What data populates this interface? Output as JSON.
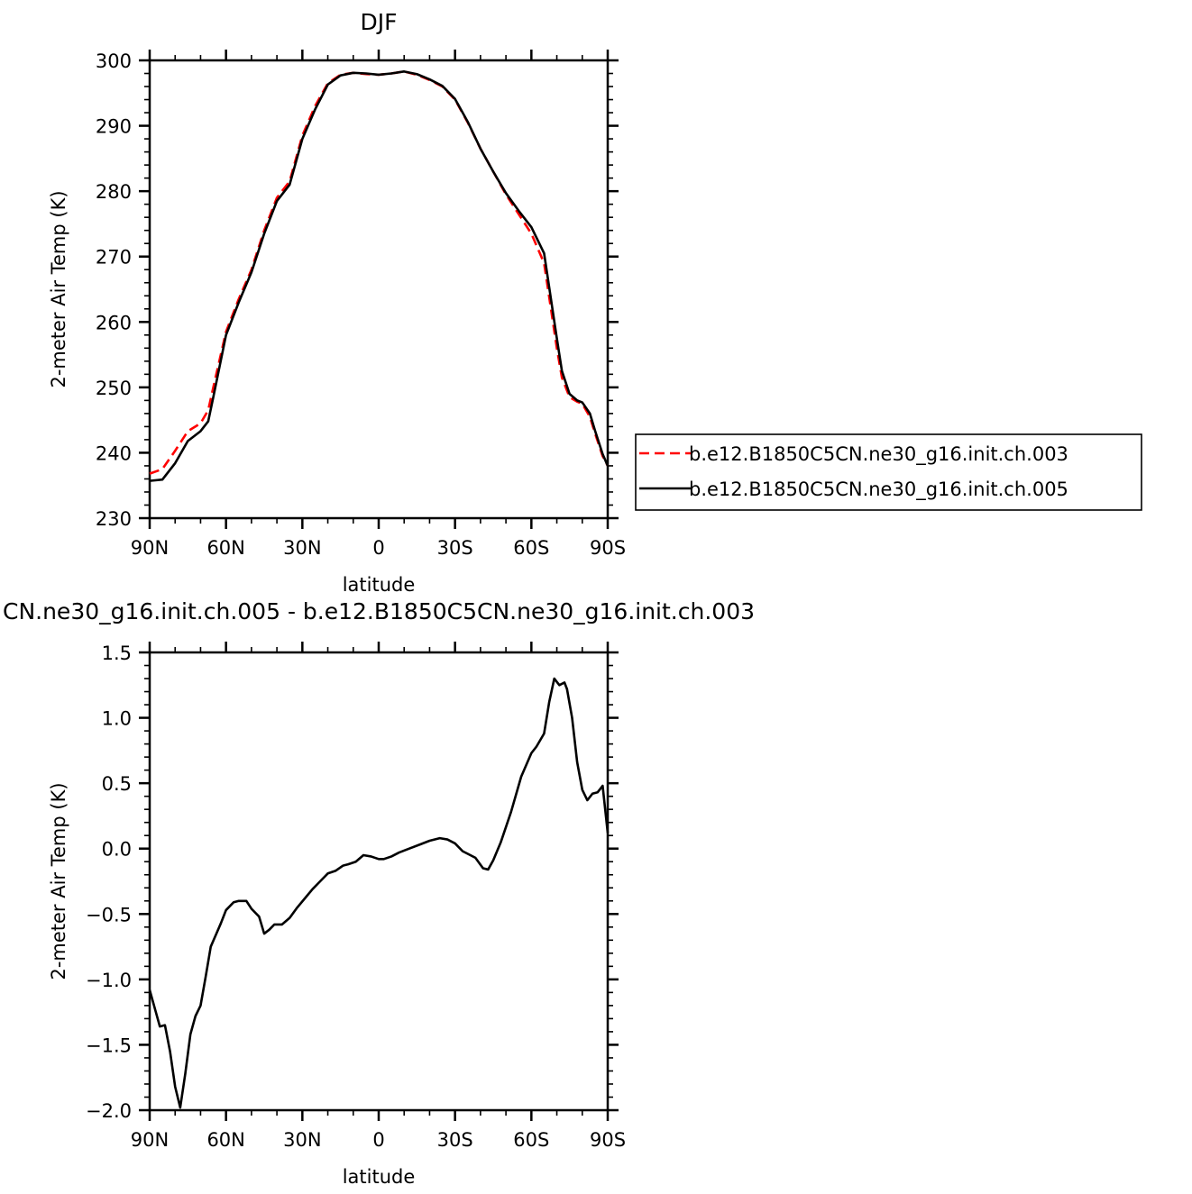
{
  "chart_data": [
    {
      "type": "line",
      "title": "DJF",
      "xlabel": "latitude",
      "ylabel": "2-meter Air Temp (K)",
      "xlim": [
        90,
        -90
      ],
      "ylim": [
        230,
        300
      ],
      "x_tick_values": [
        90,
        60,
        30,
        0,
        -30,
        -60,
        -90
      ],
      "x_tick_labels": [
        "90N",
        "60N",
        "30N",
        "0",
        "30S",
        "60S",
        "90S"
      ],
      "y_tick_values": [
        230,
        240,
        250,
        260,
        270,
        280,
        290,
        300
      ],
      "y_tick_labels": [
        "230",
        "240",
        "250",
        "260",
        "270",
        "280",
        "290",
        "300"
      ],
      "legend_position": "right",
      "grid": false,
      "series": [
        {
          "name": "b.e12.B1850C5CN.ne30_g16.init.ch.003",
          "color": "#ff0000",
          "dash": "dashed",
          "x": [
            90,
            85,
            80,
            75,
            70,
            67,
            65,
            60,
            55,
            50,
            45,
            40,
            35,
            30,
            25,
            20,
            15,
            10,
            5,
            0,
            -5,
            -10,
            -15,
            -20,
            -25,
            -30,
            -35,
            -40,
            -45,
            -50,
            -55,
            -60,
            -65,
            -70,
            -72,
            -75,
            -78,
            -80,
            -83,
            -85,
            -88,
            -90
          ],
          "y": [
            236.8,
            237.5,
            240.3,
            243.3,
            244.5,
            246.5,
            250,
            258.5,
            263.5,
            268,
            274,
            279,
            281.5,
            288.5,
            293,
            296.5,
            297.8,
            298.1,
            297.9,
            297.8,
            298,
            298.3,
            297.8,
            297,
            296,
            294,
            290.5,
            286.5,
            283,
            279.5,
            276.5,
            273.5,
            269,
            256,
            251.5,
            248.5,
            247.8,
            247.5,
            245.5,
            243,
            239.5,
            238
          ]
        },
        {
          "name": "b.e12.B1850C5CN.ne30_g16.init.ch.005",
          "color": "#000000",
          "dash": "solid",
          "x": [
            90,
            85,
            80,
            75,
            70,
            67,
            65,
            60,
            55,
            50,
            45,
            40,
            35,
            30,
            25,
            20,
            15,
            10,
            5,
            0,
            -5,
            -10,
            -15,
            -20,
            -25,
            -30,
            -35,
            -40,
            -45,
            -50,
            -55,
            -60,
            -65,
            -70,
            -72,
            -75,
            -78,
            -80,
            -83,
            -85,
            -88,
            -90
          ],
          "y": [
            235.7,
            235.9,
            238.4,
            241.8,
            243.3,
            244.8,
            248.5,
            258,
            263,
            267.6,
            273.5,
            278.5,
            281,
            288,
            292.5,
            296.3,
            297.7,
            298.1,
            298,
            297.8,
            298,
            298.3,
            297.9,
            297.1,
            296.1,
            294.1,
            290.6,
            286.5,
            283,
            279.7,
            277,
            274.5,
            270.5,
            257.5,
            252.5,
            249,
            248,
            247.7,
            246,
            243.4,
            239.8,
            238
          ]
        }
      ]
    },
    {
      "type": "line",
      "title": "CN.ne30_g16.init.ch.005 - b.e12.B1850C5CN.ne30_g16.init.ch.003",
      "xlabel": "latitude",
      "ylabel": "2-meter Air Temp (K)",
      "xlim": [
        90,
        -90
      ],
      "ylim": [
        -2.0,
        1.5
      ],
      "x_tick_values": [
        90,
        60,
        30,
        0,
        -30,
        -60,
        -90
      ],
      "x_tick_labels": [
        "90N",
        "60N",
        "30N",
        "0",
        "30S",
        "60S",
        "90S"
      ],
      "y_tick_values": [
        -2.0,
        -1.5,
        -1.0,
        -0.5,
        0.0,
        0.5,
        1.0,
        1.5
      ],
      "y_tick_labels": [
        "−2.0",
        "−1.5",
        "−1.0",
        "−0.5",
        "0.0",
        "0.5",
        "1.0",
        "1.5"
      ],
      "grid": false,
      "series": [
        {
          "color": "#000000",
          "dash": "solid",
          "x": [
            90,
            88,
            86,
            84,
            82,
            80,
            78,
            76,
            74,
            72,
            70,
            68,
            66,
            64,
            62,
            60,
            57,
            55,
            52,
            50,
            47,
            45,
            43,
            41,
            38,
            35,
            32,
            29,
            26,
            23,
            20,
            17,
            14,
            12,
            9,
            6,
            3,
            0,
            -2,
            -5,
            -8,
            -12,
            -16,
            -20,
            -24,
            -27,
            -30,
            -33,
            -35,
            -38,
            -41,
            -43,
            -45,
            -48,
            -52,
            -56,
            -60,
            -62,
            -65,
            -67,
            -69,
            -71,
            -73,
            -74,
            -76,
            -78,
            -80,
            -82,
            -84,
            -86,
            -88,
            -90
          ],
          "y": [
            -1.08,
            -1.22,
            -1.36,
            -1.35,
            -1.55,
            -1.82,
            -1.98,
            -1.72,
            -1.42,
            -1.28,
            -1.2,
            -0.98,
            -0.75,
            -0.66,
            -0.57,
            -0.47,
            -0.41,
            -0.4,
            -0.4,
            -0.46,
            -0.52,
            -0.65,
            -0.62,
            -0.58,
            -0.58,
            -0.53,
            -0.45,
            -0.38,
            -0.31,
            -0.25,
            -0.19,
            -0.17,
            -0.13,
            -0.12,
            -0.1,
            -0.05,
            -0.06,
            -0.08,
            -0.08,
            -0.06,
            -0.03,
            0.0,
            0.03,
            0.06,
            0.08,
            0.07,
            0.04,
            -0.02,
            -0.04,
            -0.07,
            -0.15,
            -0.16,
            -0.09,
            0.05,
            0.28,
            0.55,
            0.73,
            0.78,
            0.88,
            1.12,
            1.3,
            1.25,
            1.27,
            1.22,
            1.0,
            0.66,
            0.45,
            0.37,
            0.42,
            0.43,
            0.48,
            0.12
          ]
        }
      ]
    }
  ]
}
